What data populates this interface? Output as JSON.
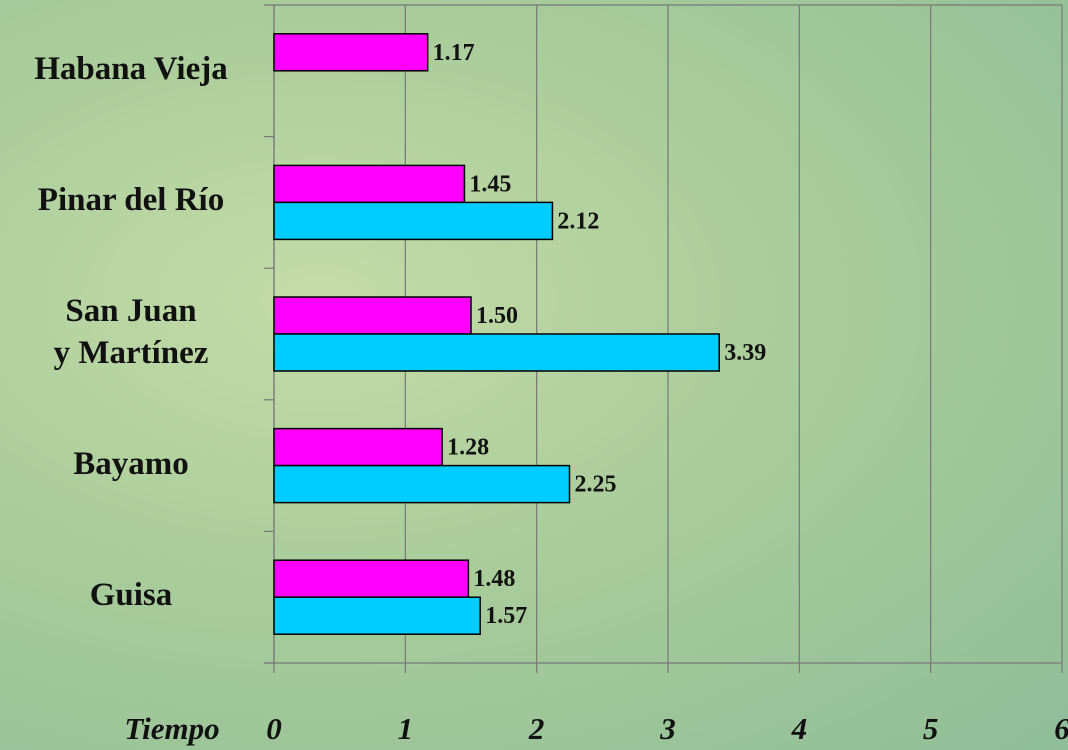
{
  "chart_data": {
    "type": "barh",
    "categories": [
      "Habana Vieja",
      "Pinar del Río",
      "San Juan\ny Martínez",
      "Bayamo",
      "Guisa"
    ],
    "series": [
      {
        "color": "#ff00ff",
        "values": [
          1.17,
          1.45,
          1.5,
          1.28,
          1.48
        ],
        "value_labels": [
          "1.17",
          "1.45",
          "1.50",
          "1.28",
          "1.48"
        ]
      },
      {
        "color": "#00ccff",
        "values": [
          null,
          2.12,
          3.39,
          2.25,
          1.57
        ],
        "value_labels": [
          null,
          "2.12",
          "3.39",
          "2.25",
          "1.57"
        ]
      }
    ],
    "xlabel": "Tiempo",
    "xlim": [
      0,
      6
    ],
    "xticks": [
      0,
      1,
      2,
      3,
      4,
      5,
      6
    ],
    "grid": true
  }
}
